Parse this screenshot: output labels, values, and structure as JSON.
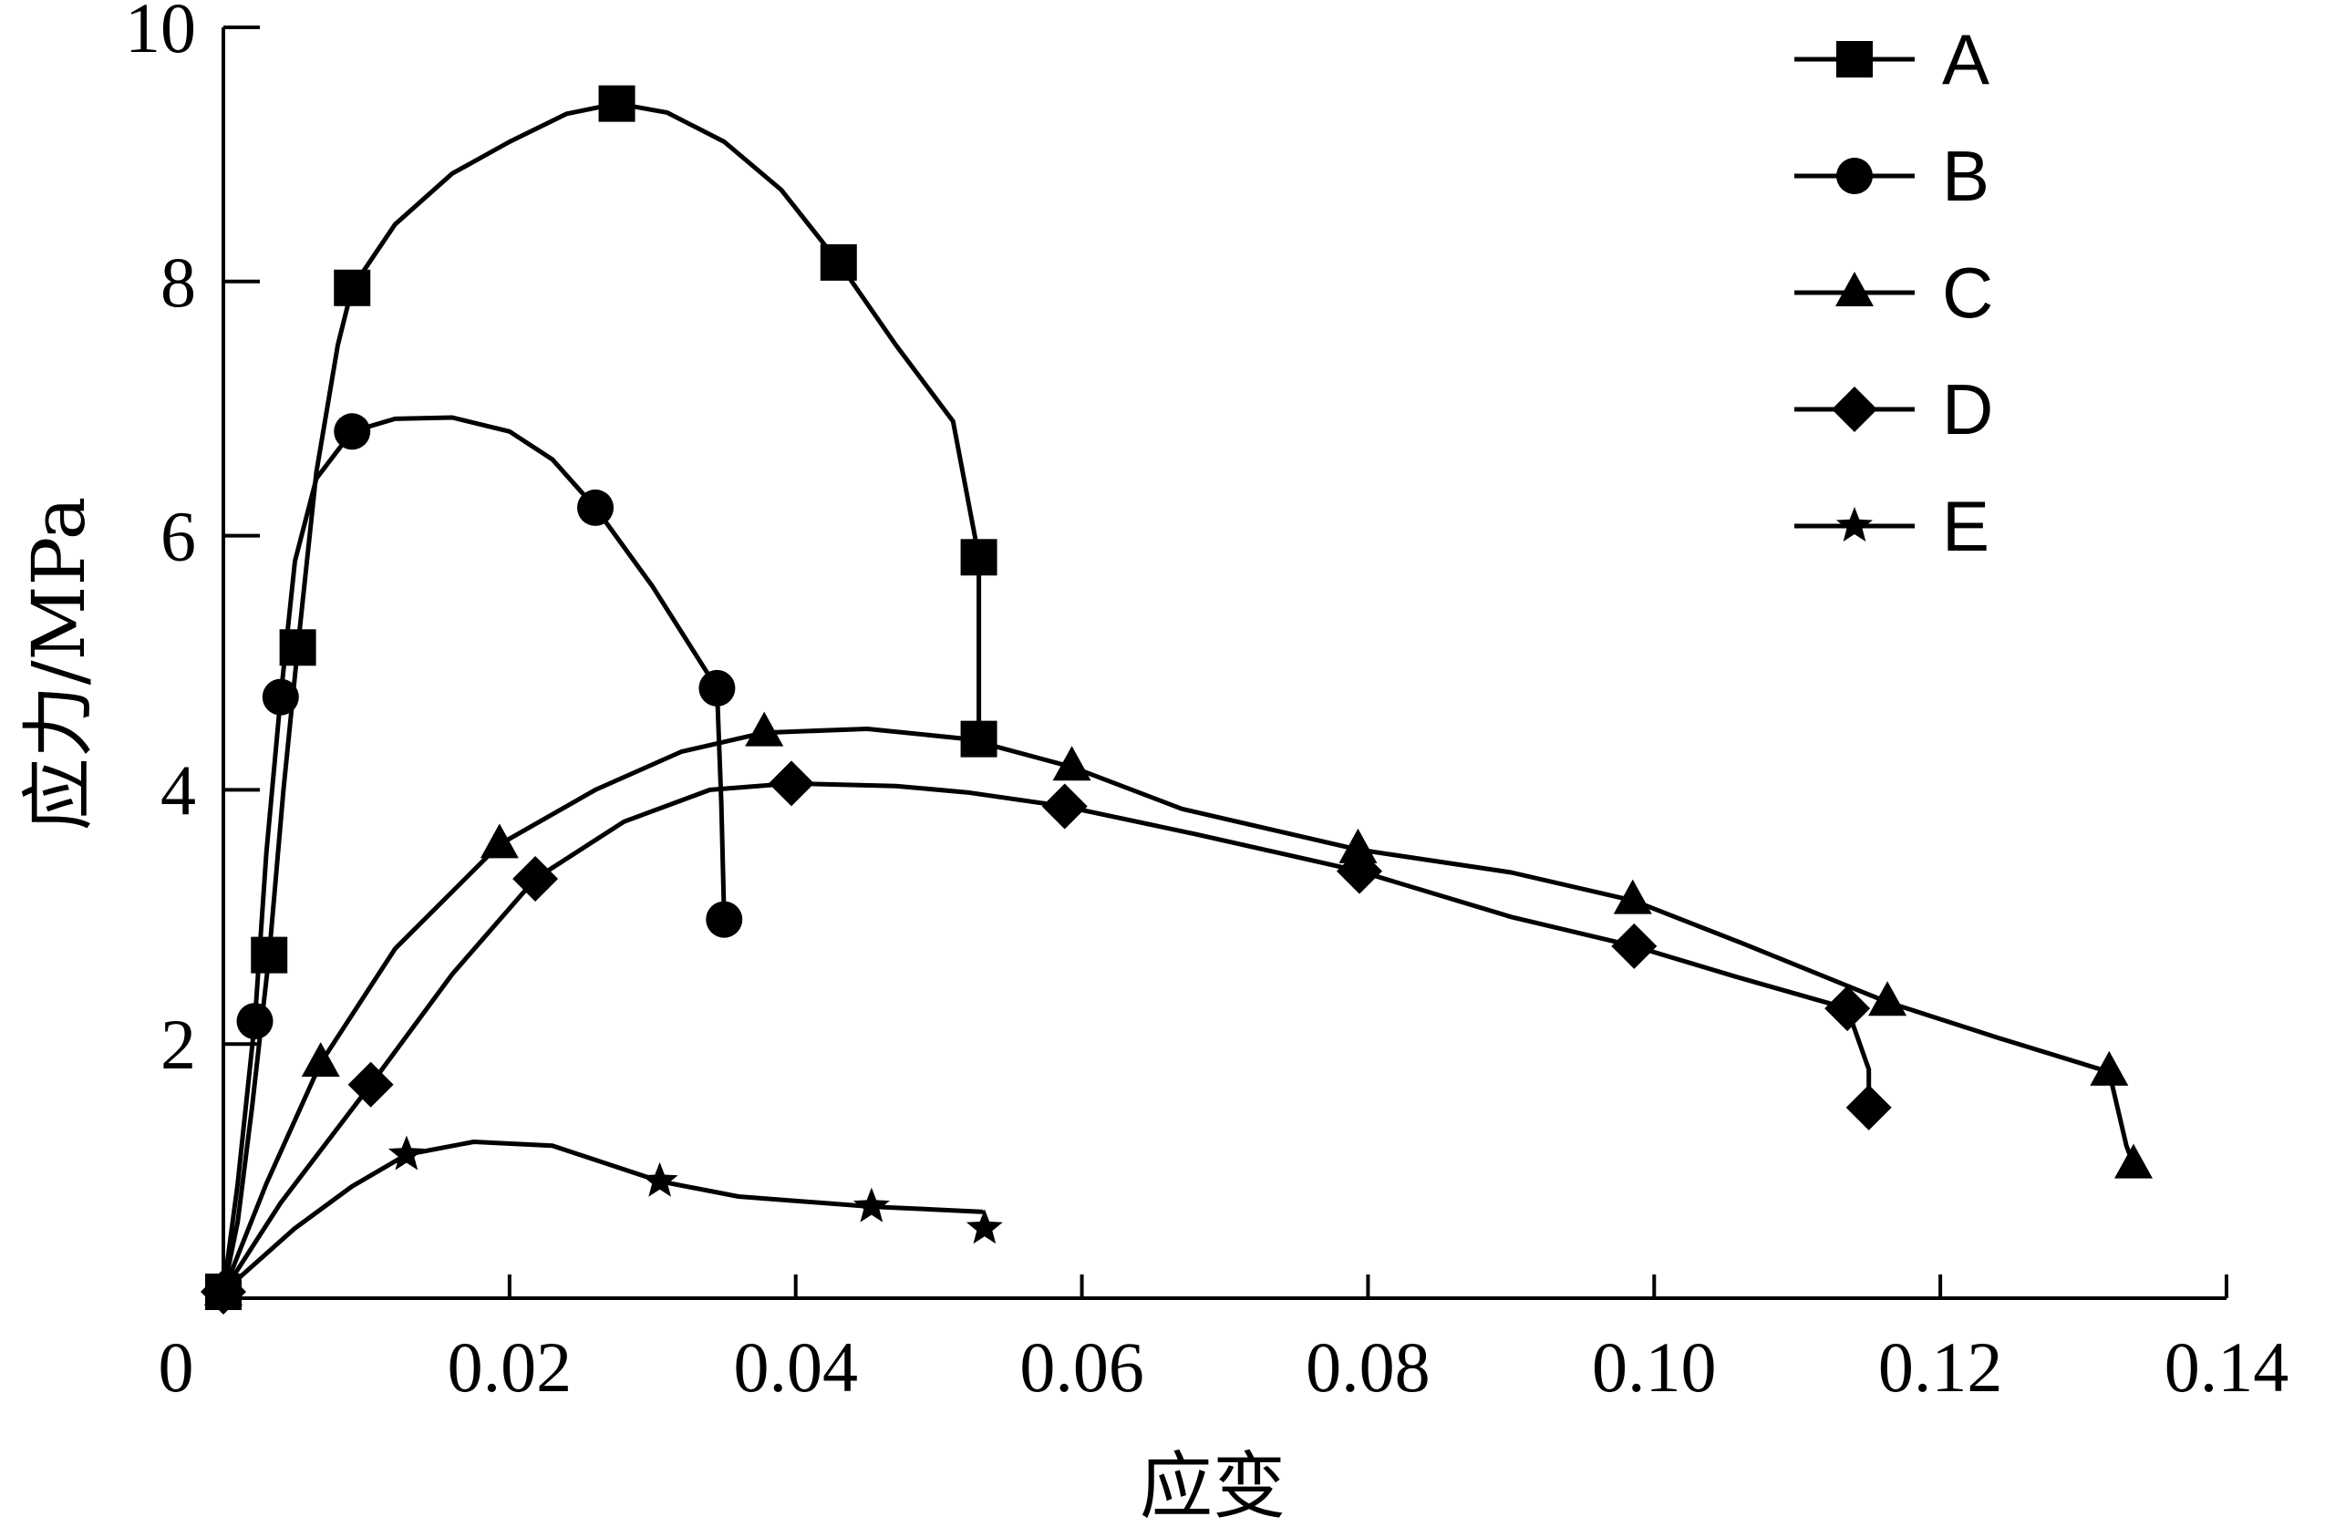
{
  "chart_data": {
    "type": "line",
    "title": "",
    "xlabel": "应变",
    "ylabel": "应力/MPa",
    "xlim": [
      0,
      0.14
    ],
    "ylim": [
      0,
      10
    ],
    "x_ticks": [
      0,
      0.02,
      0.04,
      0.06,
      0.08,
      0.1,
      0.12,
      0.14
    ],
    "x_tick_labels": [
      "0",
      "0.02",
      "0.04",
      "0.06",
      "0.08",
      "0.10",
      "0.12",
      "0.14"
    ],
    "y_ticks": [
      2,
      4,
      6,
      8,
      10
    ],
    "y_tick_labels": [
      "2",
      "4",
      "6",
      "8",
      "10"
    ],
    "grid": false,
    "legend_position": "top-right",
    "series": [
      {
        "name": "A",
        "marker": "square",
        "points": [
          [
            0,
            0.05
          ],
          [
            0.0032,
            2.7
          ],
          [
            0.0052,
            5.12
          ],
          [
            0.009,
            7.95
          ],
          [
            0.0275,
            9.4
          ],
          [
            0.043,
            8.15
          ],
          [
            0.0528,
            5.83
          ],
          [
            0.0528,
            4.4
          ]
        ],
        "curve": [
          [
            0,
            0.05
          ],
          [
            0.001,
            0.6
          ],
          [
            0.002,
            1.5
          ],
          [
            0.0032,
            2.7
          ],
          [
            0.0042,
            4.0
          ],
          [
            0.0052,
            5.12
          ],
          [
            0.0065,
            6.5
          ],
          [
            0.008,
            7.5
          ],
          [
            0.009,
            7.95
          ],
          [
            0.012,
            8.45
          ],
          [
            0.016,
            8.85
          ],
          [
            0.02,
            9.1
          ],
          [
            0.024,
            9.32
          ],
          [
            0.0275,
            9.4
          ],
          [
            0.031,
            9.33
          ],
          [
            0.035,
            9.1
          ],
          [
            0.039,
            8.72
          ],
          [
            0.043,
            8.15
          ],
          [
            0.047,
            7.5
          ],
          [
            0.051,
            6.9
          ],
          [
            0.0528,
            5.83
          ],
          [
            0.0528,
            4.4
          ]
        ]
      },
      {
        "name": "B",
        "marker": "circle",
        "points": [
          [
            0,
            0.05
          ],
          [
            0.0022,
            2.18
          ],
          [
            0.004,
            4.73
          ],
          [
            0.009,
            6.82
          ],
          [
            0.026,
            6.22
          ],
          [
            0.0345,
            4.8
          ],
          [
            0.035,
            2.98
          ]
        ],
        "curve": [
          [
            0,
            0.05
          ],
          [
            0.001,
            0.9
          ],
          [
            0.0022,
            2.18
          ],
          [
            0.003,
            3.5
          ],
          [
            0.004,
            4.73
          ],
          [
            0.005,
            5.8
          ],
          [
            0.0065,
            6.45
          ],
          [
            0.009,
            6.82
          ],
          [
            0.012,
            6.92
          ],
          [
            0.016,
            6.93
          ],
          [
            0.02,
            6.82
          ],
          [
            0.023,
            6.6
          ],
          [
            0.026,
            6.22
          ],
          [
            0.03,
            5.6
          ],
          [
            0.0345,
            4.8
          ],
          [
            0.0348,
            3.9
          ],
          [
            0.035,
            2.98
          ]
        ]
      },
      {
        "name": "C",
        "marker": "triangle",
        "points": [
          [
            0,
            0.05
          ],
          [
            0.0068,
            1.85
          ],
          [
            0.0193,
            3.57
          ],
          [
            0.0378,
            4.45
          ],
          [
            0.0593,
            4.18
          ],
          [
            0.0793,
            3.53
          ],
          [
            0.0985,
            3.13
          ],
          [
            0.1163,
            2.33
          ],
          [
            0.1318,
            1.78
          ],
          [
            0.1335,
            1.05
          ]
        ],
        "curve": [
          [
            0,
            0.05
          ],
          [
            0.003,
            0.9
          ],
          [
            0.0068,
            1.85
          ],
          [
            0.012,
            2.75
          ],
          [
            0.0193,
            3.57
          ],
          [
            0.026,
            4.0
          ],
          [
            0.032,
            4.3
          ],
          [
            0.0378,
            4.45
          ],
          [
            0.045,
            4.48
          ],
          [
            0.052,
            4.4
          ],
          [
            0.0593,
            4.18
          ],
          [
            0.067,
            3.85
          ],
          [
            0.0793,
            3.53
          ],
          [
            0.09,
            3.35
          ],
          [
            0.0985,
            3.13
          ],
          [
            0.106,
            2.8
          ],
          [
            0.1163,
            2.33
          ],
          [
            0.124,
            2.05
          ],
          [
            0.1318,
            1.78
          ],
          [
            0.133,
            1.2
          ],
          [
            0.1335,
            1.05
          ]
        ]
      },
      {
        "name": "D",
        "marker": "diamond",
        "points": [
          [
            0,
            0.05
          ],
          [
            0.0103,
            1.68
          ],
          [
            0.0218,
            3.3
          ],
          [
            0.0397,
            4.05
          ],
          [
            0.0588,
            3.87
          ],
          [
            0.0794,
            3.36
          ],
          [
            0.0986,
            2.77
          ],
          [
            0.1135,
            2.28
          ],
          [
            0.115,
            1.5
          ]
        ],
        "curve": [
          [
            0,
            0.05
          ],
          [
            0.004,
            0.75
          ],
          [
            0.0103,
            1.68
          ],
          [
            0.016,
            2.55
          ],
          [
            0.0218,
            3.3
          ],
          [
            0.028,
            3.75
          ],
          [
            0.034,
            4.0
          ],
          [
            0.0397,
            4.05
          ],
          [
            0.047,
            4.03
          ],
          [
            0.052,
            3.98
          ],
          [
            0.0588,
            3.87
          ],
          [
            0.068,
            3.65
          ],
          [
            0.0794,
            3.36
          ],
          [
            0.09,
            3.0
          ],
          [
            0.0986,
            2.77
          ],
          [
            0.106,
            2.52
          ],
          [
            0.1135,
            2.28
          ],
          [
            0.115,
            1.8
          ],
          [
            0.115,
            1.5
          ]
        ]
      },
      {
        "name": "E",
        "marker": "star",
        "points": [
          [
            0,
            0.05
          ],
          [
            0.0128,
            1.13
          ],
          [
            0.0305,
            0.92
          ],
          [
            0.0453,
            0.72
          ],
          [
            0.0532,
            0.55
          ]
        ],
        "curve": [
          [
            0,
            0.05
          ],
          [
            0.005,
            0.55
          ],
          [
            0.009,
            0.88
          ],
          [
            0.0128,
            1.13
          ],
          [
            0.0175,
            1.23
          ],
          [
            0.023,
            1.2
          ],
          [
            0.0305,
            0.92
          ],
          [
            0.036,
            0.8
          ],
          [
            0.0453,
            0.72
          ],
          [
            0.053,
            0.68
          ]
        ]
      }
    ]
  }
}
